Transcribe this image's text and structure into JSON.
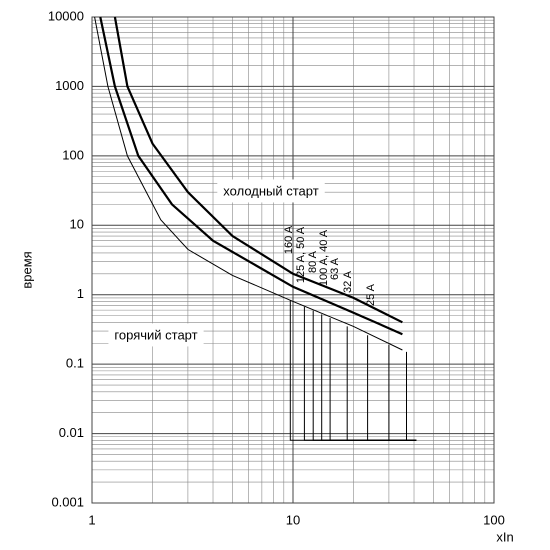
{
  "chart_data": {
    "type": "line",
    "x_scale": "log",
    "y_scale": "log",
    "xlim": [
      1,
      100
    ],
    "ylim": [
      0.001,
      10000
    ],
    "xticks": [
      1,
      10,
      100
    ],
    "yticks": [
      0.001,
      0.01,
      0.1,
      1,
      10,
      100,
      1000,
      10000
    ],
    "grid": true,
    "minor_grid": true,
    "x_label": "xIn",
    "y_label": "время",
    "annotations": [
      "холодный старт",
      "горячий старт",
      "160 A",
      "125 A, 50 A",
      "80 A",
      "100 A, 40 A",
      "63 A",
      "32 A",
      "25 A"
    ],
    "series": [
      {
        "color": "#000000",
        "width": 2.2,
        "x": [
          1.3,
          1.5,
          2,
          3,
          5,
          10,
          20,
          35
        ],
        "values": [
          10000,
          1000,
          150,
          30,
          7,
          2,
          0.9,
          0.4
        ]
      },
      {
        "color": "#000000",
        "width": 2.2,
        "x": [
          1.1,
          1.3,
          1.7,
          2.5,
          4,
          10,
          20,
          35
        ],
        "values": [
          10000,
          1000,
          100,
          20,
          6,
          1.3,
          0.55,
          0.27
        ]
      },
      {
        "color": "#000000",
        "width": 1,
        "x": [
          1.03,
          1.2,
          1.5,
          2.2,
          3,
          5,
          10,
          20,
          35
        ],
        "values": [
          10000,
          1000,
          100,
          12,
          4.5,
          1.9,
          0.8,
          0.35,
          0.16
        ]
      },
      {
        "color": "#000000",
        "width": 1,
        "x": [
          9.7,
          9.7,
          41
        ],
        "values": [
          0.83,
          0.008,
          0.008
        ]
      },
      {
        "color": "#000000",
        "width": 1,
        "x": [
          11.4,
          11.4,
          41
        ],
        "values": [
          0.67,
          0.008,
          0.008
        ]
      },
      {
        "color": "#000000",
        "width": 1,
        "x": [
          12.6,
          12.6,
          41
        ],
        "values": [
          0.59,
          0.008,
          0.008
        ]
      },
      {
        "color": "#000000",
        "width": 1,
        "x": [
          13.9,
          13.9,
          41
        ],
        "values": [
          0.52,
          0.008,
          0.008
        ]
      },
      {
        "color": "#000000",
        "width": 1,
        "x": [
          15.3,
          15.3,
          41
        ],
        "values": [
          0.46,
          0.008,
          0.008
        ]
      },
      {
        "color": "#000000",
        "width": 1,
        "x": [
          18.6,
          18.6,
          41
        ],
        "values": [
          0.35,
          0.008,
          0.008
        ]
      },
      {
        "color": "#000000",
        "width": 1,
        "x": [
          23.5,
          23.5,
          41
        ],
        "values": [
          0.26,
          0.008,
          0.008
        ]
      },
      {
        "color": "#000000",
        "width": 1,
        "x": [
          30,
          30,
          41
        ],
        "values": [
          0.19,
          0.008,
          0.008
        ]
      },
      {
        "color": "#000000",
        "width": 1,
        "x": [
          36.7,
          36.7,
          41
        ],
        "values": [
          0.15,
          0.008,
          0.008
        ]
      }
    ]
  }
}
